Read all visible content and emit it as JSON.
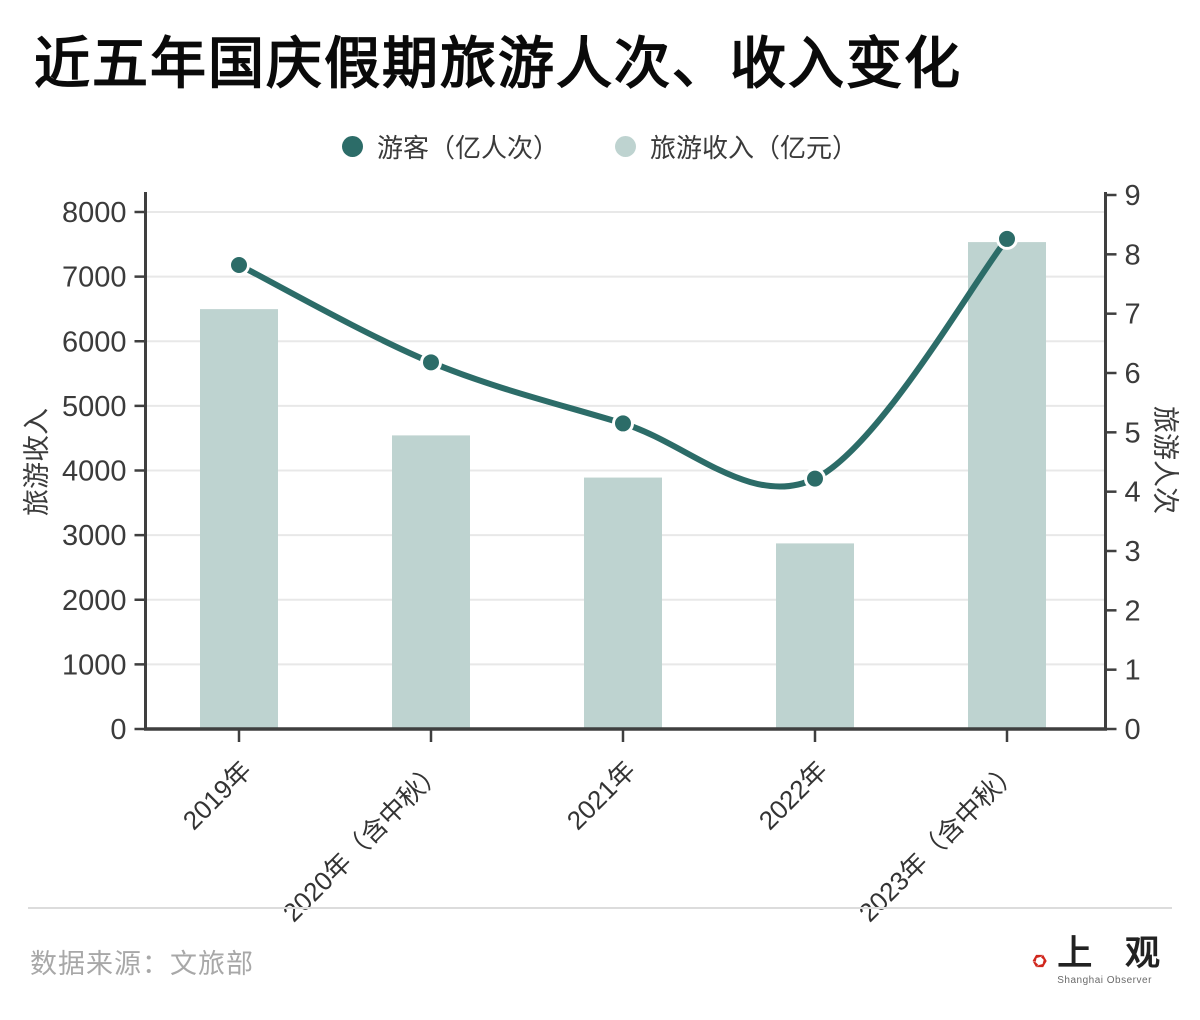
{
  "title": "近五年国庆假期旅游人次、收入变化",
  "legend": {
    "visitors": "游客（亿人次）",
    "revenue": "旅游收入（亿元）"
  },
  "footer": {
    "source": "数据来源：文旅部",
    "logo_cn": "上 观",
    "logo_en": "Shanghai Observer"
  },
  "colors": {
    "line_dark_teal": "#2c6c68",
    "bar_light_teal": "#bed3d0",
    "grid": "#e8e8e8",
    "axis": "#3f3f3f",
    "tick_text": "#3b3b3b",
    "footer_gray": "#a8a8a8",
    "logo_red": "#d0271d"
  },
  "chart_data": {
    "type": "combo",
    "title": "近五年国庆假期旅游人次、收入变化",
    "categories": [
      "2019年",
      "2020年（含中秋）",
      "2021年",
      "2022年",
      "2023年（含中秋）"
    ],
    "series": [
      {
        "name": "旅游收入（亿元）",
        "type": "bar",
        "axis": "left",
        "color": "#bed3d0",
        "values": [
          6497.1,
          4543.3,
          3890.6,
          2872.1,
          7534.3
        ]
      },
      {
        "name": "游客（亿人次）",
        "type": "line",
        "axis": "right",
        "color": "#2c6c68",
        "values": [
          7.82,
          6.18,
          5.15,
          4.22,
          8.26
        ]
      }
    ],
    "left_axis": {
      "label": "旅游收入",
      "min": 0,
      "max": 8000,
      "tick_step": 1000,
      "ticks": [
        0,
        1000,
        2000,
        3000,
        4000,
        5000,
        6000,
        7000,
        8000
      ]
    },
    "right_axis": {
      "label": "旅游人次",
      "min": 0,
      "max": 9,
      "tick_step": 1,
      "ticks": [
        0,
        1,
        2,
        3,
        4,
        5,
        6,
        7,
        8,
        9
      ]
    },
    "grid": "horizontal",
    "legend_position": "top"
  }
}
